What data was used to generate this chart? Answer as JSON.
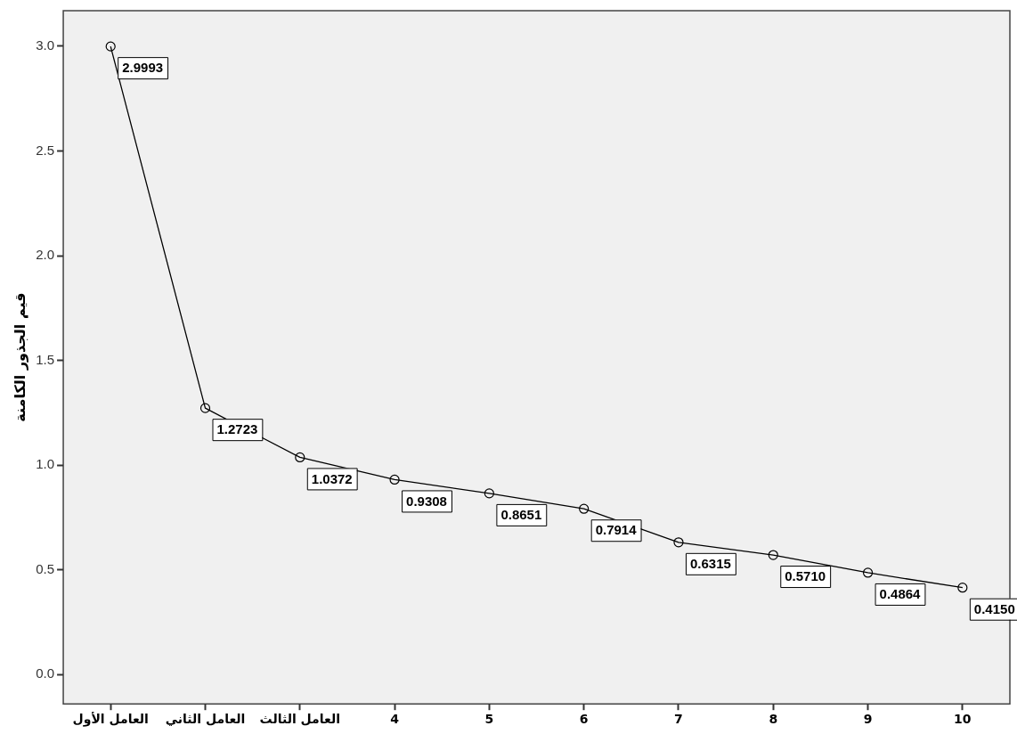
{
  "chart_data": {
    "type": "line",
    "ylabel": "قيم الجذور الكامنة",
    "categories": [
      "العامل الأول",
      "العامل الثاني",
      "العامل الثالث",
      "4",
      "5",
      "6",
      "7",
      "8",
      "9",
      "10"
    ],
    "series": [
      {
        "color": "#000000",
        "values": [
          2.9993,
          1.2723,
          1.0372,
          0.9308,
          0.8651,
          0.7914,
          0.6315,
          0.571,
          0.4864,
          0.415
        ],
        "value_labels": [
          "2.9993",
          "1.2723",
          "1.0372",
          "0.9308",
          "0.8651",
          "0.7914",
          "0.6315",
          "0.5710",
          "0.4864",
          "0.4150"
        ]
      }
    ],
    "ylim": [
      -0.14,
      3.17
    ],
    "yticks": [
      {
        "value": 0,
        "label": "0.0"
      },
      0.5,
      {
        "value": 1,
        "label": "1.0"
      },
      1.5,
      {
        "value": 2,
        "label": "2.0"
      },
      2.5,
      {
        "value": 3,
        "label": "3.0"
      }
    ],
    "grid": false,
    "legend": false,
    "marker": "circle",
    "line_style": "solid"
  }
}
